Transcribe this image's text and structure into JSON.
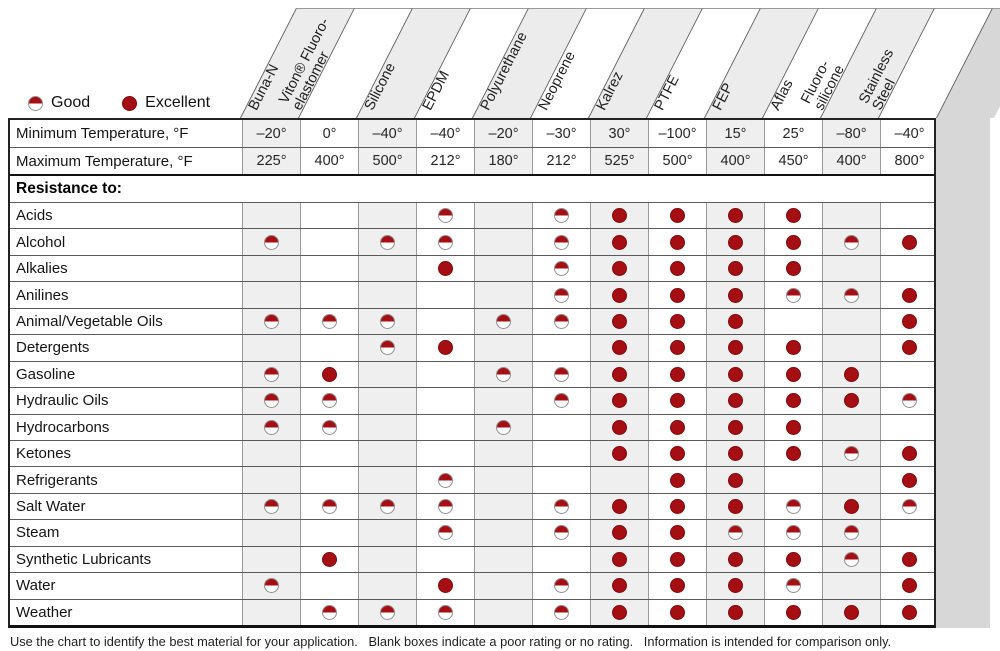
{
  "legend": {
    "good_label": "Good",
    "excellent_label": "Excellent"
  },
  "section_header": "Resistance to:",
  "footer": "Use the chart to identify the best material for your application.   Blank boxes indicate a poor rating or no rating.   Information is intended for comparison only.",
  "colors": {
    "rating_red": "#a50e13",
    "column_shade": "#efefef",
    "side_band": "#d7d7d7"
  },
  "chart_data": {
    "type": "table",
    "title": "Material temperature and chemical resistance comparison chart",
    "rating_key": {
      "G": "Good",
      "E": "Excellent",
      "blank": "poor rating or no rating"
    },
    "columns": [
      "Buna-N",
      "Viton® Fluoro-\nelastomer",
      "Silicone",
      "EPDM",
      "Polyurethane",
      "Neoprene",
      "Kalrez",
      "PTFE",
      "FEP",
      "Aflas",
      "Fluoro-\nsilicone",
      "Stainless\nSteel"
    ],
    "temperature_rows": [
      {
        "label": "Minimum Temperature, °F",
        "values": [
          "–20°",
          "0°",
          "–40°",
          "–40°",
          "–20°",
          "–30°",
          "30°",
          "–100°",
          "15°",
          "25°",
          "–80°",
          "–40°"
        ]
      },
      {
        "label": "Maximum Temperature, °F",
        "values": [
          "225°",
          "400°",
          "500°",
          "212°",
          "180°",
          "212°",
          "525°",
          "500°",
          "400°",
          "450°",
          "400°",
          "800°"
        ]
      }
    ],
    "min_temperature_f": [
      -20,
      0,
      -40,
      -40,
      -20,
      -30,
      30,
      -100,
      15,
      25,
      -80,
      -40
    ],
    "max_temperature_f": [
      225,
      400,
      500,
      212,
      180,
      212,
      525,
      500,
      400,
      450,
      400,
      800
    ],
    "rows": [
      {
        "label": "Acids",
        "ratings": [
          "",
          "",
          "",
          "G",
          "",
          "G",
          "E",
          "E",
          "E",
          "E",
          "",
          ""
        ]
      },
      {
        "label": "Alcohol",
        "ratings": [
          "G",
          "",
          "G",
          "G",
          "",
          "G",
          "E",
          "E",
          "E",
          "E",
          "G",
          "E"
        ]
      },
      {
        "label": "Alkalies",
        "ratings": [
          "",
          "",
          "",
          "E",
          "",
          "G",
          "E",
          "E",
          "E",
          "E",
          "",
          ""
        ]
      },
      {
        "label": "Anilines",
        "ratings": [
          "",
          "",
          "",
          "",
          "",
          "G",
          "E",
          "E",
          "E",
          "G",
          "G",
          "E"
        ]
      },
      {
        "label": "Animal/Vegetable Oils",
        "ratings": [
          "G",
          "G",
          "G",
          "",
          "G",
          "G",
          "E",
          "E",
          "E",
          "",
          "",
          "E"
        ]
      },
      {
        "label": "Detergents",
        "ratings": [
          "",
          "",
          "G",
          "E",
          "",
          "",
          "E",
          "E",
          "E",
          "E",
          "",
          "E"
        ]
      },
      {
        "label": "Gasoline",
        "ratings": [
          "G",
          "E",
          "",
          "",
          "G",
          "G",
          "E",
          "E",
          "E",
          "E",
          "E",
          ""
        ]
      },
      {
        "label": "Hydraulic Oils",
        "ratings": [
          "G",
          "G",
          "",
          "",
          "",
          "G",
          "E",
          "E",
          "E",
          "E",
          "E",
          "G"
        ]
      },
      {
        "label": "Hydrocarbons",
        "ratings": [
          "G",
          "G",
          "",
          "",
          "G",
          "",
          "E",
          "E",
          "E",
          "E",
          "",
          ""
        ]
      },
      {
        "label": "Ketones",
        "ratings": [
          "",
          "",
          "",
          "",
          "",
          "",
          "E",
          "E",
          "E",
          "E",
          "G",
          "E"
        ]
      },
      {
        "label": "Refrigerants",
        "ratings": [
          "",
          "",
          "",
          "G",
          "",
          "",
          "",
          "E",
          "E",
          "",
          "",
          "E"
        ]
      },
      {
        "label": "Salt Water",
        "ratings": [
          "G",
          "G",
          "G",
          "G",
          "",
          "G",
          "E",
          "E",
          "E",
          "G",
          "E",
          "G"
        ]
      },
      {
        "label": "Steam",
        "ratings": [
          "",
          "",
          "",
          "G",
          "",
          "G",
          "E",
          "E",
          "G",
          "G",
          "G",
          ""
        ]
      },
      {
        "label": "Synthetic Lubricants",
        "ratings": [
          "",
          "E",
          "",
          "",
          "",
          "",
          "E",
          "E",
          "E",
          "E",
          "G",
          "E"
        ]
      },
      {
        "label": "Water",
        "ratings": [
          "G",
          "",
          "",
          "E",
          "",
          "G",
          "E",
          "E",
          "E",
          "G",
          "",
          "E"
        ]
      },
      {
        "label": "Weather",
        "ratings": [
          "",
          "G",
          "G",
          "G",
          "",
          "G",
          "E",
          "E",
          "E",
          "E",
          "E",
          "E"
        ]
      }
    ]
  }
}
